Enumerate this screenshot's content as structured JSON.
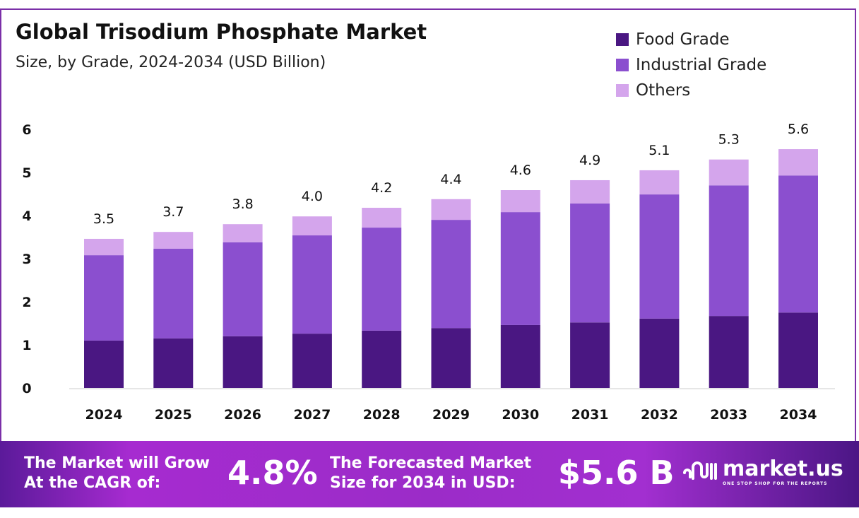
{
  "header": {
    "title": "Global Trisodium Phosphate Market",
    "subtitle": "Size, by Grade, 2024-2034 (USD Billion)"
  },
  "chart_data": {
    "type": "bar",
    "stacked": true,
    "categories": [
      "2024",
      "2025",
      "2026",
      "2027",
      "2028",
      "2029",
      "2030",
      "2031",
      "2032",
      "2033",
      "2034"
    ],
    "series": [
      {
        "name": "Food Grade",
        "color": "#4a1782",
        "values": [
          1.1,
          1.15,
          1.2,
          1.26,
          1.33,
          1.39,
          1.46,
          1.52,
          1.61,
          1.67,
          1.75
        ]
      },
      {
        "name": "Industrial Grade",
        "color": "#8b4fcf",
        "values": [
          1.98,
          2.08,
          2.18,
          2.28,
          2.39,
          2.51,
          2.62,
          2.76,
          2.88,
          3.03,
          3.18
        ]
      },
      {
        "name": "Others",
        "color": "#d4a5ec",
        "values": [
          0.38,
          0.39,
          0.42,
          0.44,
          0.46,
          0.48,
          0.51,
          0.54,
          0.56,
          0.6,
          0.61
        ]
      }
    ],
    "totals": [
      "3.5",
      "3.7",
      "3.8",
      "4.0",
      "4.2",
      "4.4",
      "4.6",
      "4.9",
      "5.1",
      "5.3",
      "5.6"
    ],
    "yticks": [
      "0",
      "1",
      "2",
      "3",
      "4",
      "5",
      "6"
    ],
    "ylim": [
      0,
      6
    ],
    "grid": false,
    "legend": "top-right"
  },
  "banner": {
    "cagr_text_1": "The Market will Grow",
    "cagr_text_2": "At the CAGR of:",
    "cagr_value": "4.8%",
    "forecast_text_1": "The Forecasted Market",
    "forecast_text_2": "Size for 2034 in USD:",
    "forecast_value": "$5.6 B",
    "logo_name": "market.us",
    "logo_tagline": "ONE STOP SHOP FOR THE REPORTS"
  }
}
